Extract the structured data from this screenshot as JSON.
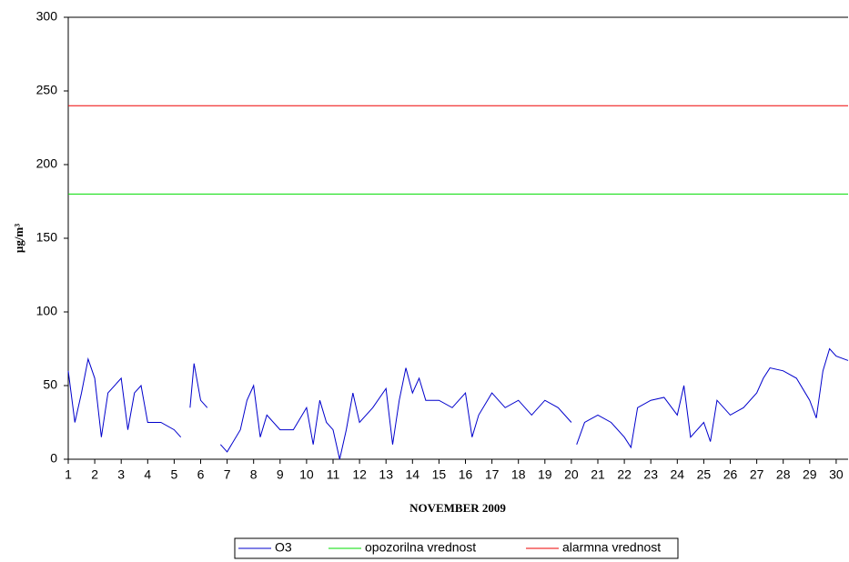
{
  "chart_data": {
    "type": "line",
    "y_label": "µg/m³",
    "x_label": "NOVEMBER 2009",
    "xlim": [
      1,
      30.45
    ],
    "xticks": [
      1,
      2,
      3,
      4,
      5,
      6,
      7,
      8,
      9,
      10,
      11,
      12,
      13,
      14,
      15,
      16,
      17,
      18,
      19,
      20,
      21,
      22,
      23,
      24,
      25,
      26,
      27,
      28,
      29,
      30
    ],
    "ylim": [
      0,
      300
    ],
    "yticks": [
      0,
      50,
      100,
      150,
      200,
      250,
      300
    ],
    "grid": false,
    "legend": "bottom",
    "series": [
      {
        "name": "O3",
        "color": "#0000cc",
        "x": [
          1,
          1.25,
          1.5,
          1.75,
          2,
          2.25,
          2.5,
          3,
          3.25,
          3.5,
          3.75,
          4,
          4.5,
          5,
          5.25,
          5.4,
          5.6,
          5.75,
          6,
          6.25,
          6.45,
          6.75,
          7,
          7.5,
          7.75,
          8,
          8.25,
          8.5,
          9,
          9.5,
          10,
          10.25,
          10.5,
          10.75,
          11,
          11.25,
          11.5,
          11.75,
          12,
          12.5,
          13,
          13.25,
          13.5,
          13.75,
          14,
          14.25,
          14.5,
          15,
          15.5,
          16,
          16.25,
          16.5,
          17,
          17.5,
          18,
          18.5,
          19,
          19.5,
          20,
          20.1,
          20.2,
          20.5,
          21,
          21.5,
          22,
          22.25,
          22.5,
          23,
          23.5,
          24,
          24.25,
          24.5,
          25,
          25.25,
          25.5,
          26,
          26.5,
          27,
          27.25,
          27.5,
          28,
          28.5,
          29,
          29.25,
          29.5,
          29.75,
          30,
          30.45
        ],
        "values": [
          60,
          25,
          45,
          68,
          55,
          15,
          45,
          55,
          20,
          45,
          50,
          25,
          25,
          20,
          15,
          null,
          35,
          65,
          40,
          35,
          null,
          10,
          5,
          20,
          40,
          50,
          15,
          30,
          20,
          20,
          35,
          10,
          40,
          25,
          20,
          0,
          20,
          45,
          25,
          35,
          48,
          10,
          40,
          62,
          45,
          55,
          40,
          40,
          35,
          45,
          15,
          30,
          45,
          35,
          40,
          30,
          40,
          35,
          25,
          null,
          10,
          25,
          30,
          25,
          15,
          8,
          35,
          40,
          42,
          30,
          50,
          15,
          25,
          12,
          40,
          30,
          35,
          45,
          55,
          62,
          60,
          55,
          40,
          28,
          60,
          75,
          70,
          67
        ]
      },
      {
        "name": "opozorilna vrednost",
        "color": "#00dd00",
        "x": [
          1,
          30.45
        ],
        "values": [
          180,
          180
        ]
      },
      {
        "name": "alarmna vrednost",
        "color": "#ee0000",
        "x": [
          1,
          30.45
        ],
        "values": [
          240,
          240
        ]
      }
    ]
  }
}
